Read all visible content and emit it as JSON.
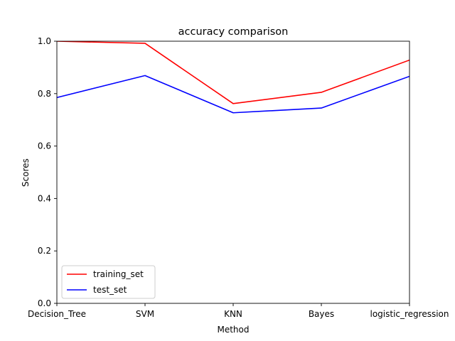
{
  "chart_data": {
    "type": "line",
    "title": "accuracy comparison",
    "xlabel": "Method",
    "ylabel": "Scores",
    "categories": [
      "Decision_Tree",
      "SVM",
      "KNN",
      "Bayes",
      "logistic_regression"
    ],
    "ylim": [
      0,
      1.0
    ],
    "yticks": [
      "0.0",
      "0.2",
      "0.4",
      "0.6",
      "0.8",
      "1.0"
    ],
    "grid": false,
    "legend_position": "lower-left",
    "series": [
      {
        "name": "training_set",
        "color": "#ff0000",
        "values": [
          1.0,
          0.992,
          0.762,
          0.805,
          0.928
        ]
      },
      {
        "name": "test_set",
        "color": "#0000ff",
        "values": [
          0.785,
          0.869,
          0.727,
          0.745,
          0.866
        ]
      }
    ]
  }
}
